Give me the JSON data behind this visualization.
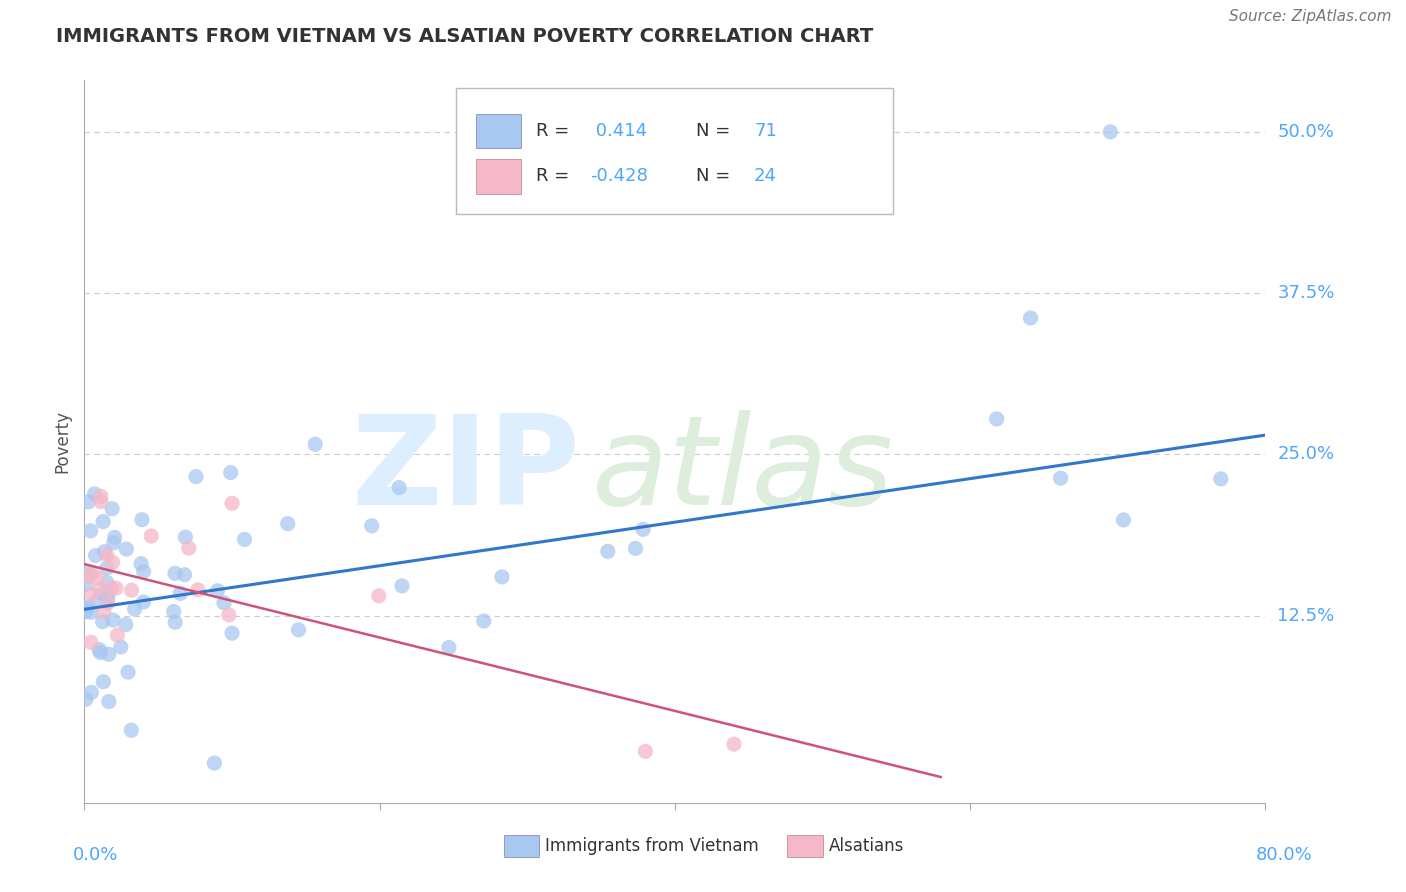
{
  "title": "IMMIGRANTS FROM VIETNAM VS ALSATIAN POVERTY CORRELATION CHART",
  "source": "Source: ZipAtlas.com",
  "ylabel": "Poverty",
  "yticks": [
    0.0,
    0.125,
    0.25,
    0.375,
    0.5
  ],
  "ytick_labels": [
    "",
    "12.5%",
    "25.0%",
    "37.5%",
    "50.0%"
  ],
  "xlim": [
    0.0,
    0.8
  ],
  "ylim": [
    -0.02,
    0.54
  ],
  "legend_entries": [
    {
      "color": "#a8c8f0",
      "R": "0.414",
      "N": "71",
      "label": "Immigrants from Vietnam"
    },
    {
      "color": "#f4b8c8",
      "R": "-0.428",
      "N": "24",
      "label": "Alsatians"
    }
  ],
  "blue_line": {
    "x0": 0.0,
    "y0": 0.13,
    "x1": 0.8,
    "y1": 0.265
  },
  "pink_line": {
    "x0": 0.0,
    "y0": 0.165,
    "x1": 0.58,
    "y1": 0.0
  },
  "title_color": "#333333",
  "axis_color": "#4da6ff",
  "scatter_blue_color": "#a8c8f0",
  "scatter_pink_color": "#f4b8c8",
  "line_blue_color": "#3377cc",
  "line_pink_color": "#cc5577",
  "grid_color": "#cccccc",
  "background_color": "#ffffff",
  "watermark_zip_color": "#ddeeff",
  "watermark_atlas_color": "#ddeedd"
}
